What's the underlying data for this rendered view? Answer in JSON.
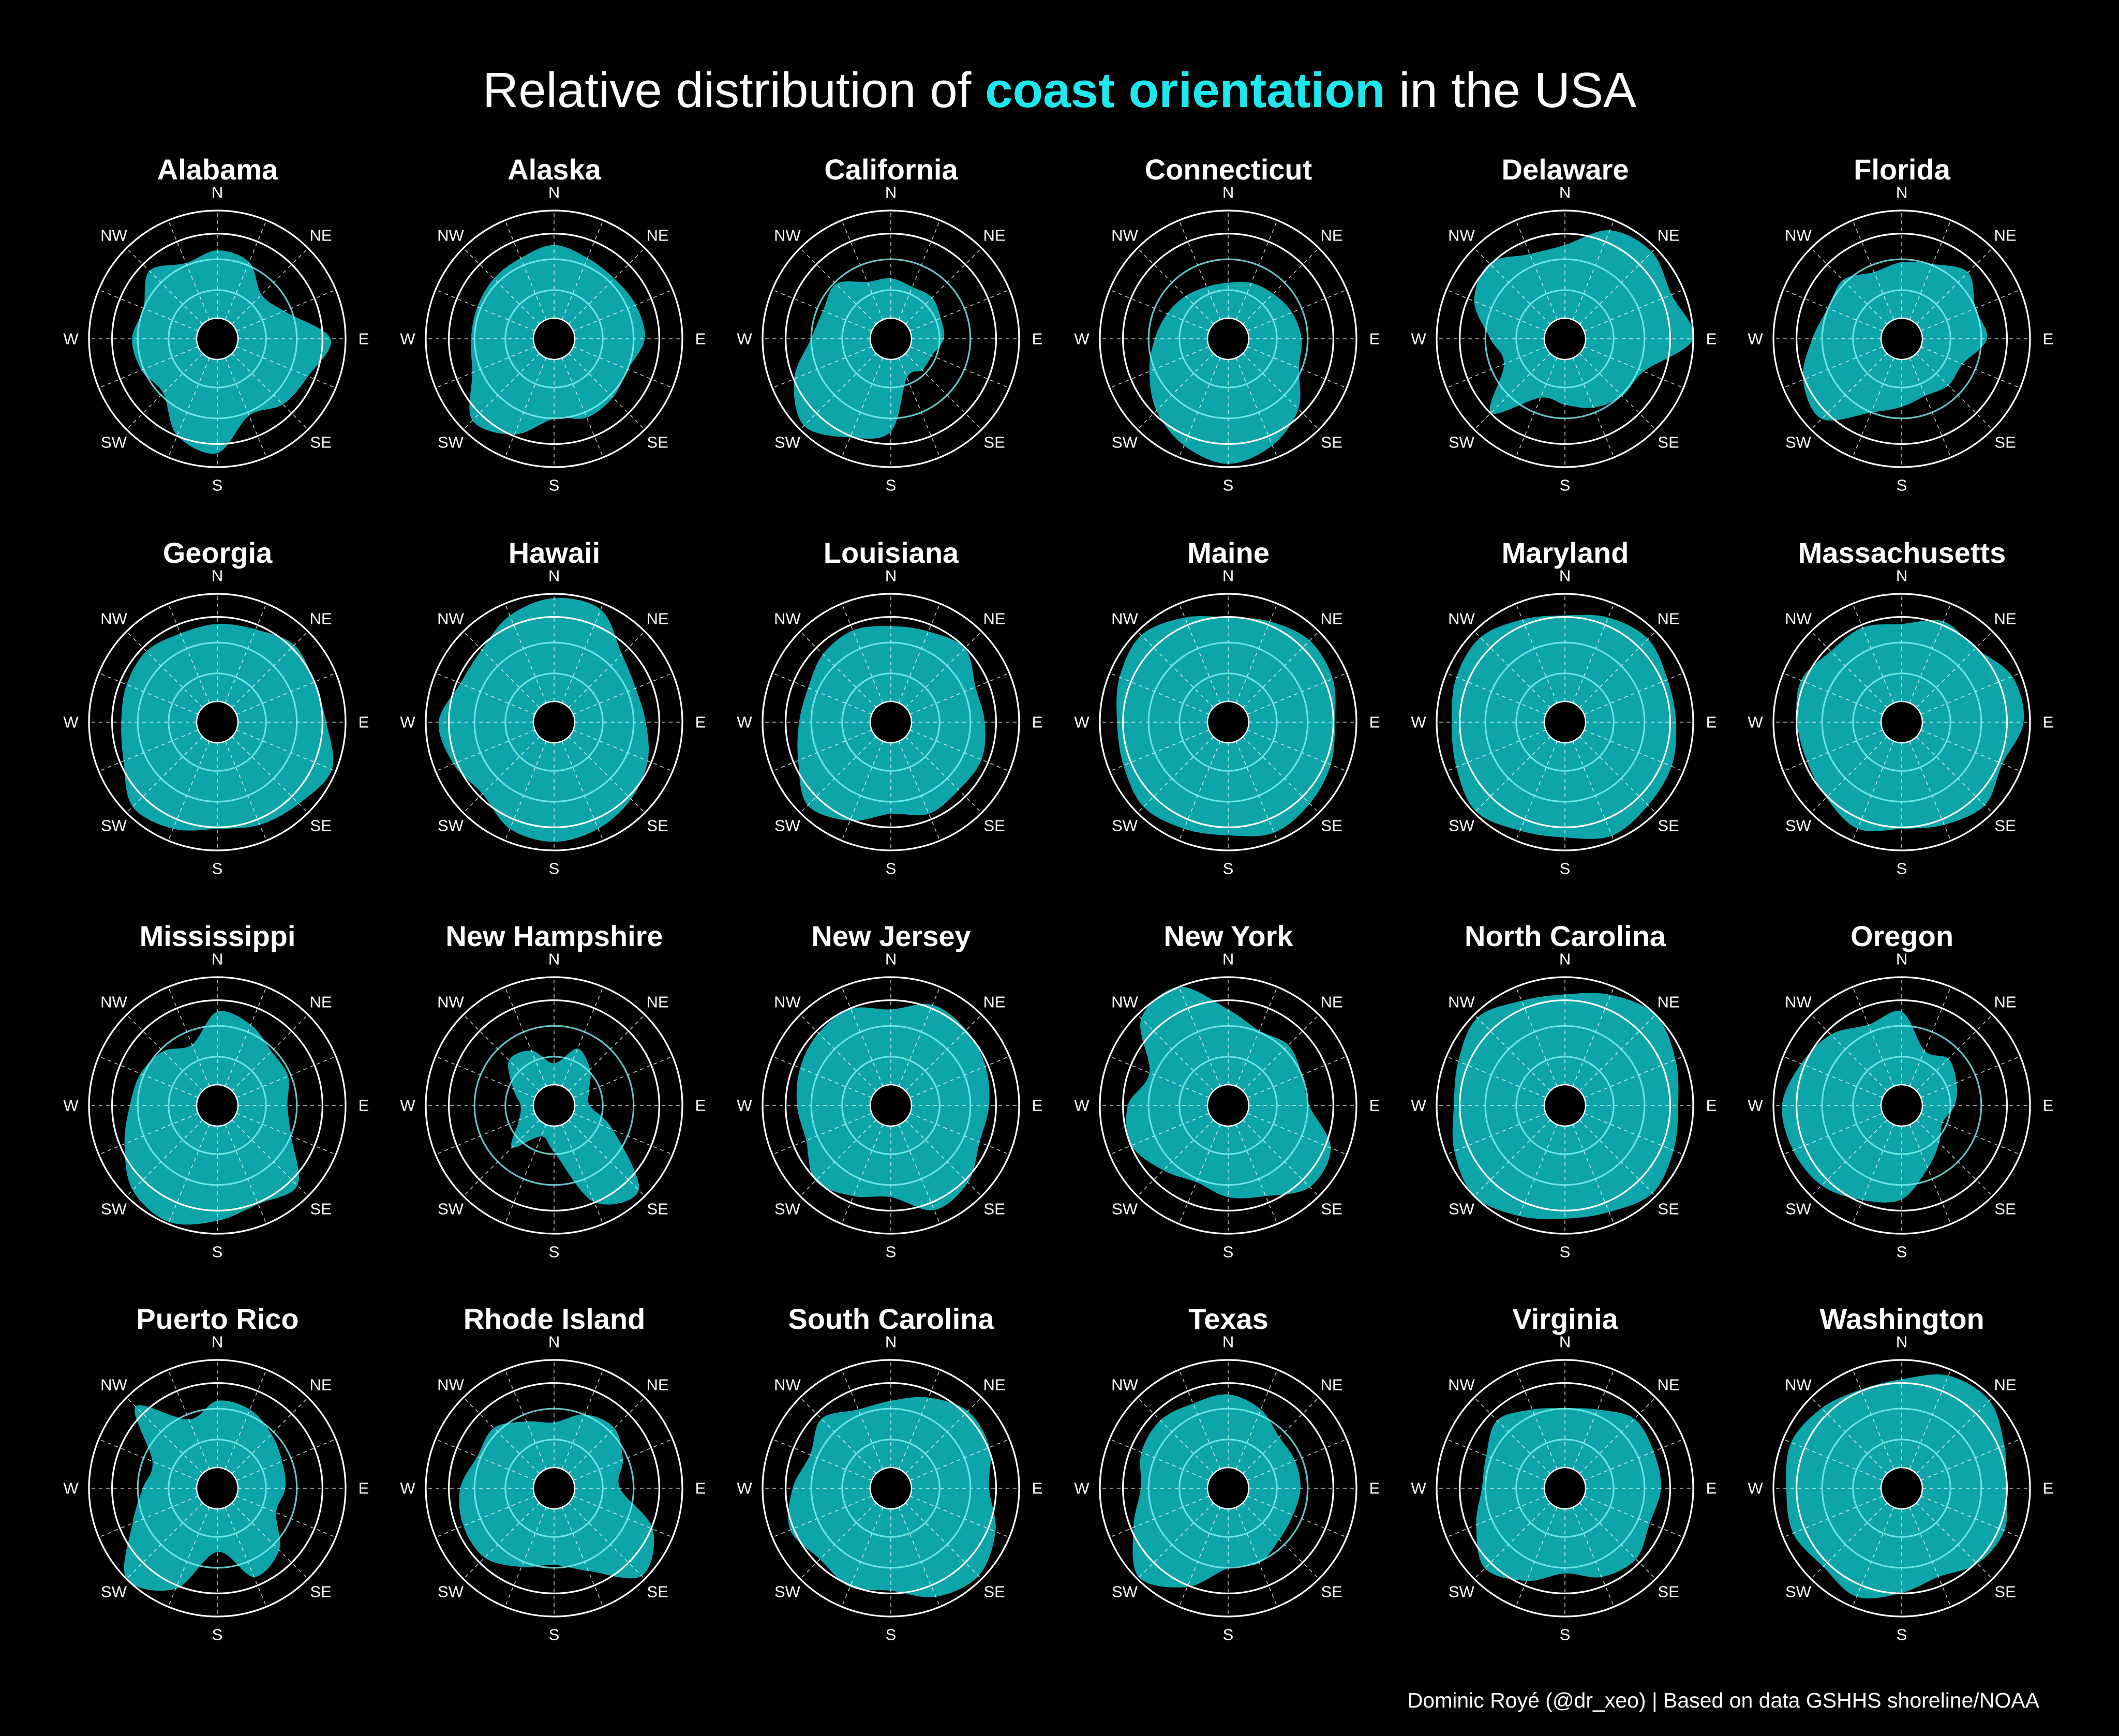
{
  "title": {
    "prefix": "Relative distribution of",
    "highlight": "coast orientation",
    "suffix": "in the USA"
  },
  "caption": "Dominic Royé (@dr_xeo) | Based on data GSHHS shoreline/NOAA",
  "colors": {
    "background": "#000000",
    "fill": "#0fb3b8",
    "highlight": "#1ee8ee",
    "grid": "#ffffff",
    "inner_rings": "#7ff2f4"
  },
  "chart_data": {
    "type": "polar-area",
    "directions": [
      "N",
      "NE",
      "E",
      "SE",
      "S",
      "SW",
      "W",
      "NW"
    ],
    "angles_deg": [
      0,
      22.5,
      45,
      67.5,
      90,
      112.5,
      135,
      157.5,
      180,
      202.5,
      225,
      247.5,
      270,
      292.5,
      315,
      337.5
    ],
    "rlim": [
      0,
      1
    ],
    "grid": true,
    "panels": [
      {
        "name": "Alabama",
        "values": [
          0.63,
          0.58,
          0.39,
          0.48,
          0.86,
          0.72,
          0.67,
          0.58,
          0.87,
          0.78,
          0.52,
          0.57,
          0.6,
          0.55,
          0.7,
          0.57
        ]
      },
      {
        "name": "Alaska",
        "values": [
          0.68,
          0.62,
          0.6,
          0.63,
          0.65,
          0.55,
          0.58,
          0.6,
          0.55,
          0.77,
          0.88,
          0.63,
          0.58,
          0.58,
          0.6,
          0.62
        ]
      },
      {
        "name": "California",
        "values": [
          0.37,
          0.33,
          0.35,
          0.31,
          0.3,
          0.22,
          0.22,
          0.2,
          0.67,
          0.8,
          0.95,
          0.78,
          0.55,
          0.49,
          0.53,
          0.38
        ]
      },
      {
        "name": "Connecticut",
        "values": [
          0.33,
          0.37,
          0.4,
          0.45,
          0.49,
          0.52,
          0.73,
          0.88,
          0.97,
          0.88,
          0.75,
          0.6,
          0.49,
          0.42,
          0.37,
          0.33
        ]
      },
      {
        "name": "Delaware",
        "values": [
          0.68,
          0.9,
          0.95,
          0.88,
          1.0,
          0.6,
          0.56,
          0.5,
          0.42,
          0.4,
          0.78,
          0.42,
          0.5,
          0.72,
          0.8,
          0.66
        ]
      },
      {
        "name": "Florida",
        "values": [
          0.52,
          0.56,
          0.68,
          0.55,
          0.6,
          0.42,
          0.42,
          0.38,
          0.44,
          0.55,
          0.86,
          0.8,
          0.64,
          0.55,
          0.58,
          0.48
        ]
      },
      {
        "name": "Georgia",
        "values": [
          0.72,
          0.74,
          0.82,
          0.78,
          0.82,
          0.96,
          0.88,
          0.84,
          0.8,
          0.88,
          0.92,
          0.75,
          0.7,
          0.72,
          0.74,
          0.7
        ]
      },
      {
        "name": "Hawaii",
        "values": [
          0.96,
          0.94,
          0.7,
          0.63,
          0.66,
          0.75,
          0.82,
          0.88,
          0.92,
          0.88,
          0.75,
          0.82,
          0.88,
          0.75,
          0.76,
          0.88
        ]
      },
      {
        "name": "Louisiana",
        "values": [
          0.7,
          0.72,
          0.78,
          0.66,
          0.68,
          0.72,
          0.7,
          0.73,
          0.66,
          0.8,
          0.9,
          0.74,
          0.66,
          0.64,
          0.7,
          0.73
        ]
      },
      {
        "name": "Maine",
        "values": [
          0.78,
          0.82,
          0.88,
          0.86,
          0.8,
          0.84,
          0.88,
          0.92,
          0.86,
          0.88,
          0.92,
          0.86,
          0.84,
          0.9,
          0.95,
          0.86
        ]
      },
      {
        "name": "Maryland",
        "values": [
          0.8,
          0.86,
          0.9,
          0.84,
          0.84,
          0.88,
          0.9,
          0.95,
          0.88,
          0.9,
          0.98,
          0.9,
          0.86,
          0.9,
          0.92,
          0.84
        ]
      },
      {
        "name": "Massachusetts",
        "values": [
          0.72,
          0.82,
          0.78,
          0.92,
          0.94,
          0.82,
          0.9,
          0.84,
          0.8,
          0.88,
          0.8,
          0.76,
          0.78,
          0.82,
          0.74,
          0.76
        ]
      },
      {
        "name": "Mississippi",
        "values": [
          0.68,
          0.62,
          0.52,
          0.52,
          0.46,
          0.55,
          0.86,
          0.8,
          0.88,
          0.98,
          0.92,
          0.74,
          0.62,
          0.58,
          0.52,
          0.42
        ]
      },
      {
        "name": "New Hampshire",
        "values": [
          0.2,
          0.38,
          0.28,
          0.16,
          0.14,
          0.4,
          0.92,
          0.78,
          0.24,
          0.12,
          0.36,
          0.16,
          0.12,
          0.22,
          0.4,
          0.36
        ]
      },
      {
        "name": "New Jersey",
        "values": [
          0.7,
          0.82,
          0.8,
          0.76,
          0.72,
          0.7,
          0.82,
          0.86,
          0.66,
          0.72,
          0.8,
          0.66,
          0.68,
          0.72,
          0.76,
          0.78
        ]
      },
      {
        "name": "New York",
        "values": [
          0.7,
          0.56,
          0.6,
          0.55,
          0.56,
          0.84,
          0.88,
          0.72,
          0.66,
          0.58,
          0.66,
          0.78,
          0.74,
          0.6,
          0.95,
          1.0
        ]
      },
      {
        "name": "North Carolina",
        "values": [
          0.84,
          0.92,
          1.0,
          0.92,
          0.86,
          0.9,
          0.96,
          0.88,
          0.86,
          0.92,
          1.0,
          0.92,
          0.84,
          0.88,
          0.96,
          0.86
        ]
      },
      {
        "name": "Oregon",
        "values": [
          0.68,
          0.36,
          0.42,
          0.36,
          0.3,
          0.22,
          0.3,
          0.44,
          0.68,
          0.76,
          0.86,
          0.9,
          0.92,
          0.82,
          0.74,
          0.62
        ]
      },
      {
        "name": "Puerto Rico",
        "values": [
          0.62,
          0.6,
          0.52,
          0.46,
          0.44,
          0.4,
          0.62,
          0.7,
          0.4,
          0.82,
          1.0,
          0.66,
          0.5,
          0.46,
          0.88,
          0.5
        ]
      },
      {
        "name": "Rhode Island",
        "values": [
          0.42,
          0.55,
          0.6,
          0.5,
          0.42,
          0.8,
          0.96,
          0.64,
          0.52,
          0.6,
          0.72,
          0.72,
          0.68,
          0.58,
          0.6,
          0.48
        ]
      },
      {
        "name": "South Carolina",
        "values": [
          0.62,
          0.72,
          0.82,
          0.8,
          0.72,
          0.86,
          0.96,
          0.9,
          0.76,
          0.8,
          0.74,
          0.82,
          0.72,
          0.62,
          0.72,
          0.6
        ]
      },
      {
        "name": "Texas",
        "values": [
          0.68,
          0.6,
          0.48,
          0.48,
          0.48,
          0.46,
          0.48,
          0.56,
          0.55,
          0.8,
          0.98,
          0.76,
          0.62,
          0.68,
          0.7,
          0.66
        ]
      },
      {
        "name": "Virginia",
        "values": [
          0.55,
          0.6,
          0.72,
          0.7,
          0.7,
          0.66,
          0.74,
          0.7,
          0.6,
          0.74,
          0.86,
          0.7,
          0.58,
          0.6,
          0.7,
          0.6
        ]
      },
      {
        "name": "Washington",
        "values": [
          0.82,
          0.94,
          0.96,
          0.84,
          0.78,
          0.84,
          0.8,
          0.7,
          0.78,
          0.9,
          0.84,
          0.9,
          0.88,
          0.92,
          0.86,
          0.8
        ]
      }
    ]
  }
}
